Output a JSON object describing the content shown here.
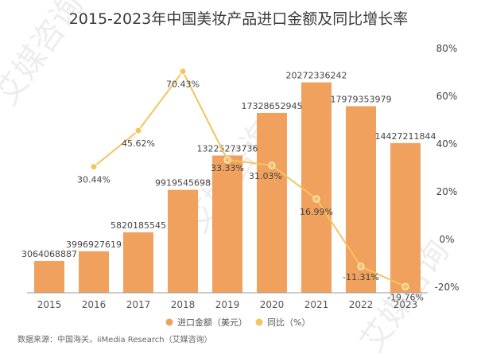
{
  "chart_data": {
    "type": "bar",
    "title": "2015-2023年中国美妆产品进口金额及同比增长率",
    "categories": [
      "2015",
      "2016",
      "2017",
      "2018",
      "2019",
      "2020",
      "2021",
      "2022",
      "2023"
    ],
    "series": [
      {
        "name": "进口金额（美元）",
        "type": "bar",
        "axis": "left",
        "color": "#F0A15E",
        "values": [
          3064068887,
          3996927619,
          5820185545,
          9919545698,
          13225273736,
          17328652945,
          20272336242,
          17979353979,
          14427211844
        ],
        "labels": [
          "3064068887",
          "3996927619",
          "5820185545",
          "9919545698",
          "13225273736",
          "17328652945",
          "20272336242",
          "17979353979",
          "14427211844"
        ]
      },
      {
        "name": "同比（%）",
        "type": "line",
        "axis": "right",
        "color": "#F5C45E",
        "x": [
          "2016",
          "2017",
          "2018",
          "2019",
          "2020",
          "2021",
          "2022",
          "2023"
        ],
        "values": [
          30.44,
          45.62,
          70.43,
          33.33,
          31.03,
          16.99,
          -11.31,
          -19.76
        ],
        "labels": [
          "30.44%",
          "45.62%",
          "70.43%",
          "33.33%",
          "31.03%",
          "16.99%",
          "-11.31%",
          "-19.76%"
        ]
      }
    ],
    "y_left_lim": [
      0,
      23000000000
    ],
    "y_right_lim": [
      -20,
      80
    ],
    "y_right_ticks": [
      -20,
      0,
      20,
      40,
      60,
      80
    ],
    "y_right_tick_labels": [
      "-20%",
      "0%",
      "20%",
      "40%",
      "60%",
      "80%"
    ],
    "grid": false,
    "legend_position": "bottom-center"
  },
  "source_text": "数据来源：中国海关，iiMedia Research（艾媒咨询）",
  "watermark": "艾媒咨询"
}
